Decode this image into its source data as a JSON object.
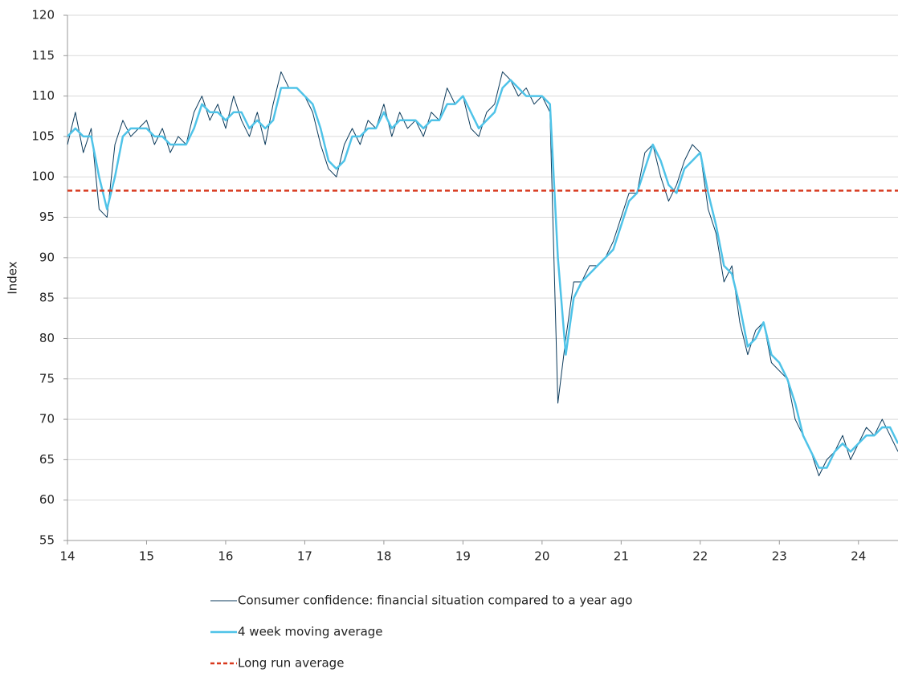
{
  "chart_data": {
    "type": "line",
    "y_label": "Index",
    "x": [
      14.0,
      14.1,
      14.2,
      14.3,
      14.4,
      14.5,
      14.6,
      14.7,
      14.8,
      14.9,
      15.0,
      15.1,
      15.2,
      15.3,
      15.4,
      15.5,
      15.6,
      15.7,
      15.8,
      15.9,
      16.0,
      16.1,
      16.2,
      16.3,
      16.4,
      16.5,
      16.6,
      16.7,
      16.8,
      16.9,
      17.0,
      17.1,
      17.2,
      17.3,
      17.4,
      17.5,
      17.6,
      17.7,
      17.8,
      17.9,
      18.0,
      18.1,
      18.2,
      18.3,
      18.4,
      18.5,
      18.6,
      18.7,
      18.8,
      18.9,
      19.0,
      19.1,
      19.2,
      19.3,
      19.4,
      19.5,
      19.6,
      19.7,
      19.8,
      19.9,
      20.0,
      20.1,
      20.2,
      20.3,
      20.4,
      20.5,
      20.6,
      20.7,
      20.8,
      20.9,
      21.0,
      21.1,
      21.2,
      21.3,
      21.4,
      21.5,
      21.6,
      21.7,
      21.8,
      21.9,
      22.0,
      22.1,
      22.2,
      22.3,
      22.4,
      22.5,
      22.6,
      22.7,
      22.8,
      22.9,
      23.0,
      23.1,
      23.2,
      23.3,
      23.4,
      23.5,
      23.6,
      23.7,
      23.8,
      23.9,
      24.0,
      24.1,
      24.2,
      24.3,
      24.4,
      24.5
    ],
    "series": [
      {
        "name": "Consumer confidence: financial situation compared to a year ago",
        "color": "#0b3a5b",
        "width": 1,
        "values": [
          104,
          108,
          103,
          106,
          96,
          95,
          104,
          107,
          105,
          106,
          107,
          104,
          106,
          103,
          105,
          104,
          108,
          110,
          107,
          109,
          106,
          110,
          107,
          105,
          108,
          104,
          109,
          113,
          111,
          111,
          110,
          108,
          104,
          101,
          100,
          104,
          106,
          104,
          107,
          106,
          109,
          105,
          108,
          106,
          107,
          105,
          108,
          107,
          111,
          109,
          110,
          106,
          105,
          108,
          109,
          113,
          112,
          110,
          111,
          109,
          110,
          108,
          72,
          80,
          87,
          87,
          89,
          89,
          90,
          92,
          95,
          98,
          98,
          103,
          104,
          100,
          97,
          99,
          102,
          104,
          103,
          96,
          93,
          87,
          89,
          82,
          78,
          81,
          82,
          77,
          76,
          75,
          70,
          68,
          66,
          63,
          65,
          66,
          68,
          65,
          67,
          69,
          68,
          70,
          68,
          66
        ]
      },
      {
        "name": "4 week moving average",
        "color": "#4fc3e8",
        "width": 2.5,
        "values": [
          105,
          106,
          105,
          105,
          100,
          96,
          100,
          105,
          106,
          106,
          106,
          105,
          105,
          104,
          104,
          104,
          106,
          109,
          108,
          108,
          107,
          108,
          108,
          106,
          107,
          106,
          107,
          111,
          111,
          111,
          110,
          109,
          106,
          102,
          101,
          102,
          105,
          105,
          106,
          106,
          108,
          106,
          107,
          107,
          107,
          106,
          107,
          107,
          109,
          109,
          110,
          108,
          106,
          107,
          108,
          111,
          112,
          111,
          110,
          110,
          110,
          109,
          90,
          78,
          85,
          87,
          88,
          89,
          90,
          91,
          94,
          97,
          98,
          101,
          104,
          102,
          99,
          98,
          101,
          102,
          103,
          98,
          94,
          89,
          88,
          84,
          79,
          80,
          82,
          78,
          77,
          75,
          72,
          68,
          66,
          64,
          64,
          66,
          67,
          66,
          67,
          68,
          68,
          69,
          69,
          67
        ]
      }
    ],
    "long_run_average": {
      "name": "Long run average",
      "value": 98.3,
      "color": "#d8391e"
    },
    "xlim": [
      14,
      24.5
    ],
    "xticks": [
      14,
      15,
      16,
      17,
      18,
      19,
      20,
      21,
      22,
      23,
      24
    ],
    "ylim": [
      55,
      120
    ],
    "yticks": [
      55,
      60,
      65,
      70,
      75,
      80,
      85,
      90,
      95,
      100,
      105,
      110,
      115,
      120
    ],
    "grid": true
  }
}
